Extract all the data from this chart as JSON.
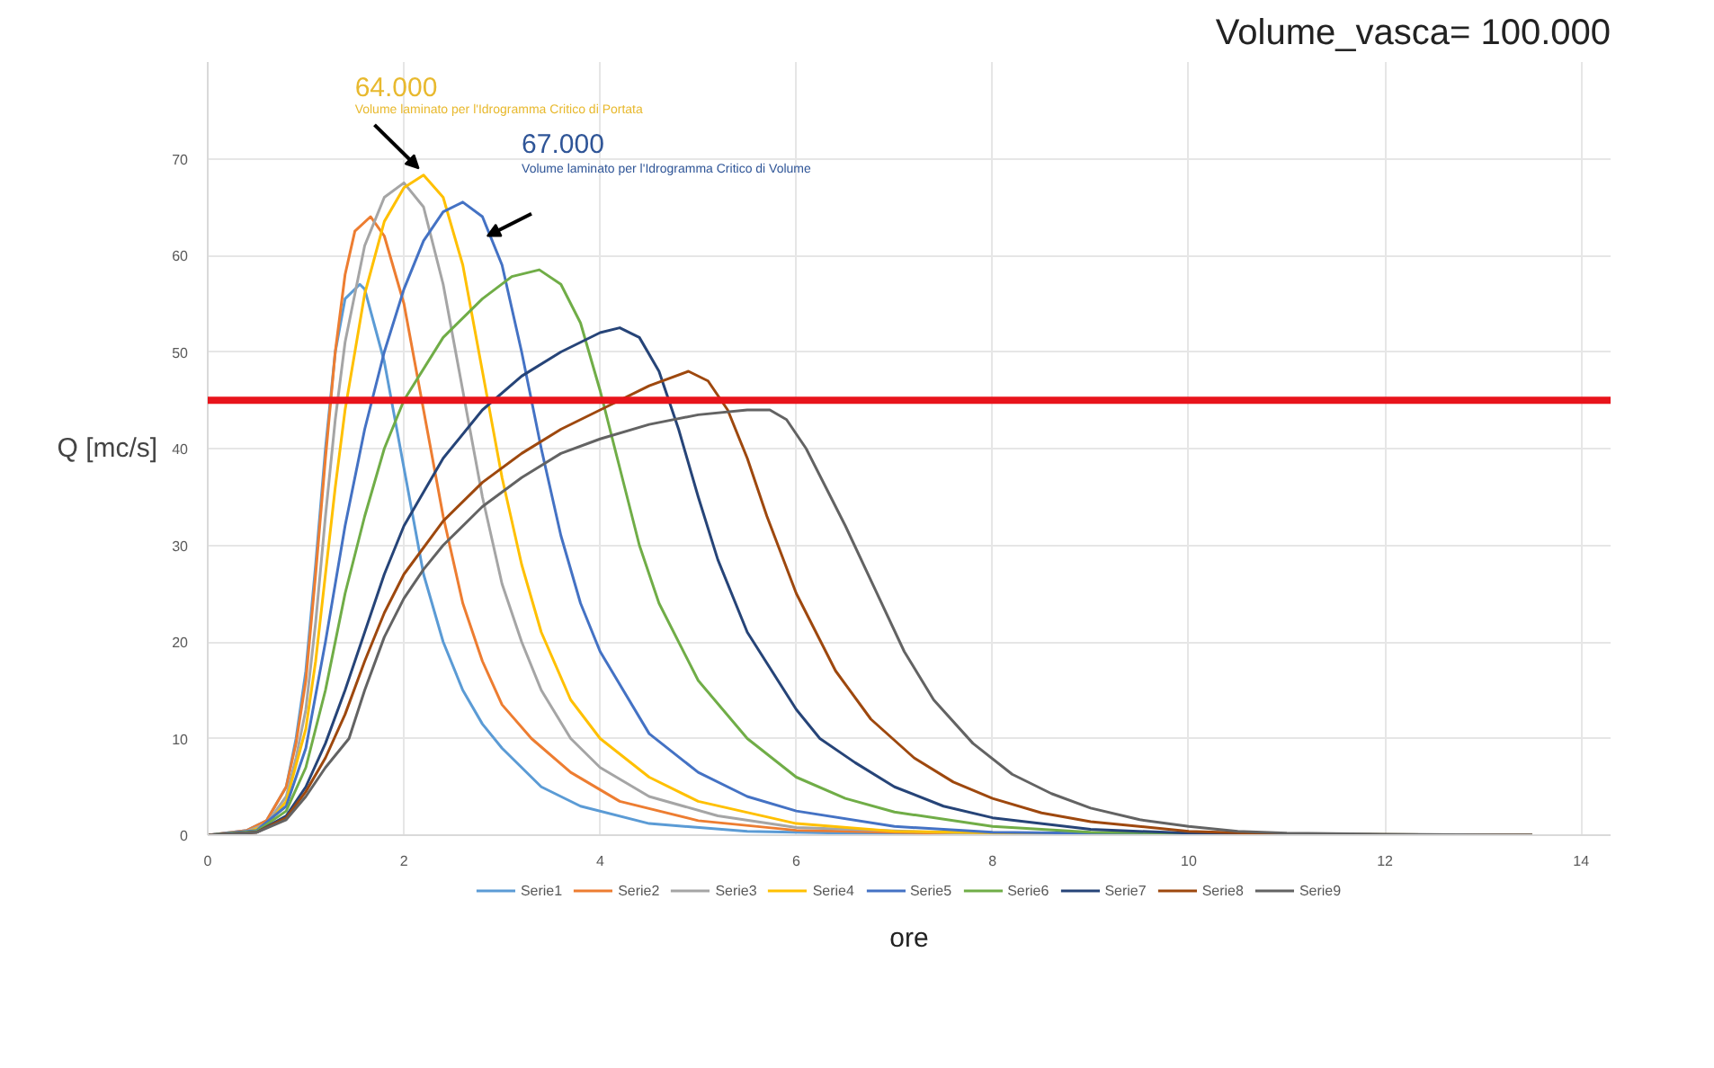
{
  "chart_data": {
    "type": "line",
    "title": "Volume_vasca= 100.000",
    "xlabel": "ore",
    "ylabel": "Q [mc/s]",
    "xlim": [
      0,
      14.3
    ],
    "ylim": [
      0,
      80
    ],
    "xticks": [
      0,
      2,
      4,
      6,
      8,
      10,
      12,
      14
    ],
    "yticks": [
      0,
      10,
      20,
      30,
      40,
      50,
      60,
      70
    ],
    "grid": true,
    "legend": "bottom",
    "marker": "none",
    "line_style": "solid",
    "ref_lines": [
      {
        "axis": "y",
        "value": 45,
        "color": "#e8141b"
      }
    ],
    "annotations": [
      {
        "text": "64.000",
        "x": 2.15,
        "y": 69
      },
      "Volume laminato per l'Idrogramma Critico di Portata",
      "67.000",
      "Volume laminato per l'Idrogramma Critico di Volume"
    ],
    "series": [
      {
        "name": "Serie1",
        "color": "#5b9bd5",
        "x": [
          0,
          0.4,
          0.6,
          0.8,
          0.9,
          1.0,
          1.1,
          1.2,
          1.3,
          1.4,
          1.55,
          1.6,
          1.8,
          2.0,
          2.2,
          2.4,
          2.6,
          2.8,
          3.0,
          3.4,
          3.8,
          4.5,
          5.5,
          7,
          9,
          13.5
        ],
        "values": [
          0,
          0.5,
          1.5,
          5,
          10,
          17,
          28,
          40,
          50,
          55.5,
          57,
          56.5,
          49,
          38,
          27,
          20,
          15,
          11.5,
          9,
          5,
          3,
          1.2,
          0.4,
          0.1,
          0,
          0
        ]
      },
      {
        "name": "Serie2",
        "color": "#ed7d31",
        "x": [
          0,
          0.4,
          0.6,
          0.8,
          0.9,
          1.0,
          1.1,
          1.2,
          1.3,
          1.4,
          1.5,
          1.66,
          1.8,
          2.0,
          2.2,
          2.4,
          2.6,
          2.8,
          3.0,
          3.3,
          3.7,
          4.2,
          5,
          6,
          8,
          13.5
        ],
        "values": [
          0,
          0.5,
          1.5,
          5,
          9.5,
          16,
          27,
          39,
          50,
          58,
          62.5,
          64,
          62,
          55,
          44,
          33,
          24,
          18,
          13.5,
          10,
          6.5,
          3.5,
          1.5,
          0.5,
          0.1,
          0
        ]
      },
      {
        "name": "Serie3",
        "color": "#a5a5a5",
        "x": [
          0,
          0.4,
          0.6,
          0.8,
          0.9,
          1.0,
          1.1,
          1.2,
          1.3,
          1.4,
          1.6,
          1.8,
          2.0,
          2.2,
          2.4,
          2.6,
          2.8,
          3.0,
          3.2,
          3.4,
          3.7,
          4.0,
          4.5,
          5.2,
          6,
          8,
          13.5
        ],
        "values": [
          0,
          0.4,
          1.2,
          4,
          8,
          13,
          22,
          33,
          43,
          51,
          61,
          66,
          67.5,
          65,
          57,
          46,
          35,
          26,
          20,
          15,
          10,
          7,
          4,
          2,
          0.8,
          0.1,
          0
        ]
      },
      {
        "name": "Serie4",
        "color": "#ffc000",
        "x": [
          0,
          0.4,
          0.6,
          0.8,
          1.0,
          1.1,
          1.2,
          1.3,
          1.4,
          1.6,
          1.8,
          2.0,
          2.2,
          2.4,
          2.6,
          2.8,
          3.0,
          3.2,
          3.4,
          3.7,
          4.0,
          4.5,
          5,
          6,
          7,
          9,
          13.5
        ],
        "values": [
          0,
          0.3,
          1,
          3.5,
          11,
          18,
          27,
          36,
          44,
          56,
          63.5,
          67,
          68.3,
          66,
          59,
          48,
          37,
          28,
          21,
          14,
          10,
          6,
          3.5,
          1.2,
          0.4,
          0.1,
          0
        ]
      },
      {
        "name": "Serie5",
        "color": "#4472c4",
        "x": [
          0,
          0.5,
          0.8,
          1.0,
          1.2,
          1.4,
          1.6,
          1.8,
          2.0,
          2.2,
          2.4,
          2.6,
          2.8,
          3.0,
          3.2,
          3.4,
          3.6,
          3.8,
          4.0,
          4.5,
          5,
          5.5,
          6,
          7,
          8,
          10,
          13.5
        ],
        "values": [
          0,
          0.5,
          3,
          9,
          20,
          32,
          42,
          50,
          56.5,
          61.5,
          64.5,
          65.5,
          64,
          59,
          50,
          40,
          31,
          24,
          19,
          10.5,
          6.5,
          4,
          2.5,
          0.9,
          0.3,
          0.1,
          0
        ]
      },
      {
        "name": "Serie6",
        "color": "#70ad47",
        "x": [
          0,
          0.5,
          0.8,
          1.0,
          1.2,
          1.4,
          1.6,
          1.8,
          2.0,
          2.4,
          2.8,
          3.1,
          3.38,
          3.6,
          3.8,
          4.0,
          4.2,
          4.4,
          4.6,
          5.0,
          5.5,
          6,
          6.5,
          7,
          8,
          9,
          11,
          13.5
        ],
        "values": [
          0,
          0.4,
          2.5,
          7,
          15,
          25,
          33,
          40,
          45,
          51.5,
          55.5,
          57.8,
          58.5,
          57,
          53,
          46,
          38,
          30,
          24,
          16,
          10,
          6,
          3.8,
          2.4,
          0.9,
          0.3,
          0.1,
          0
        ]
      },
      {
        "name": "Serie7",
        "color": "#264478",
        "x": [
          0,
          0.5,
          0.8,
          1.0,
          1.2,
          1.4,
          1.6,
          1.8,
          2.0,
          2.4,
          2.8,
          3.2,
          3.6,
          4.0,
          4.2,
          4.4,
          4.6,
          4.8,
          5.0,
          5.2,
          5.5,
          6.0,
          6.24,
          6.6,
          7,
          7.5,
          8,
          9,
          10,
          11.5,
          13.5
        ],
        "values": [
          0,
          0.3,
          2,
          5,
          9.5,
          15,
          21,
          27,
          32,
          39,
          44,
          47.5,
          50,
          52,
          52.5,
          51.5,
          48,
          42,
          35,
          28.5,
          21,
          13,
          10,
          7.5,
          5,
          3,
          1.8,
          0.6,
          0.2,
          0,
          0
        ]
      },
      {
        "name": "Serie8",
        "color": "#9e480e",
        "x": [
          0,
          0.5,
          0.8,
          1.0,
          1.2,
          1.4,
          1.6,
          1.8,
          2.0,
          2.4,
          2.8,
          3.2,
          3.6,
          4.0,
          4.5,
          4.9,
          5.1,
          5.3,
          5.5,
          5.7,
          6.0,
          6.4,
          6.76,
          7.2,
          7.6,
          8,
          8.5,
          9,
          10,
          11,
          13.5
        ],
        "values": [
          0,
          0.3,
          1.8,
          4.5,
          8,
          12.5,
          18,
          23,
          27,
          32.5,
          36.5,
          39.5,
          42,
          44,
          46.5,
          48,
          47,
          44,
          39,
          33,
          25,
          17,
          12,
          8,
          5.5,
          3.8,
          2.3,
          1.4,
          0.4,
          0.1,
          0
        ]
      },
      {
        "name": "Serie9",
        "color": "#636363",
        "x": [
          0,
          0.5,
          0.8,
          1.0,
          1.2,
          1.44,
          1.6,
          1.8,
          2.0,
          2.2,
          2.4,
          2.8,
          3.2,
          3.6,
          4.0,
          4.5,
          5.0,
          5.5,
          5.73,
          5.9,
          6.1,
          6.3,
          6.5,
          6.8,
          7.1,
          7.4,
          7.8,
          8.2,
          8.6,
          9,
          9.5,
          10,
          10.5,
          11,
          12,
          13.5
        ],
        "values": [
          0,
          0.3,
          1.6,
          4,
          7,
          10,
          15,
          20.5,
          24.5,
          27.5,
          30,
          34,
          37,
          39.5,
          41,
          42.5,
          43.5,
          44,
          44,
          43,
          40,
          36,
          32,
          25.5,
          19,
          14,
          9.5,
          6.3,
          4.3,
          2.8,
          1.6,
          0.9,
          0.4,
          0.2,
          0.1,
          0
        ]
      }
    ]
  }
}
